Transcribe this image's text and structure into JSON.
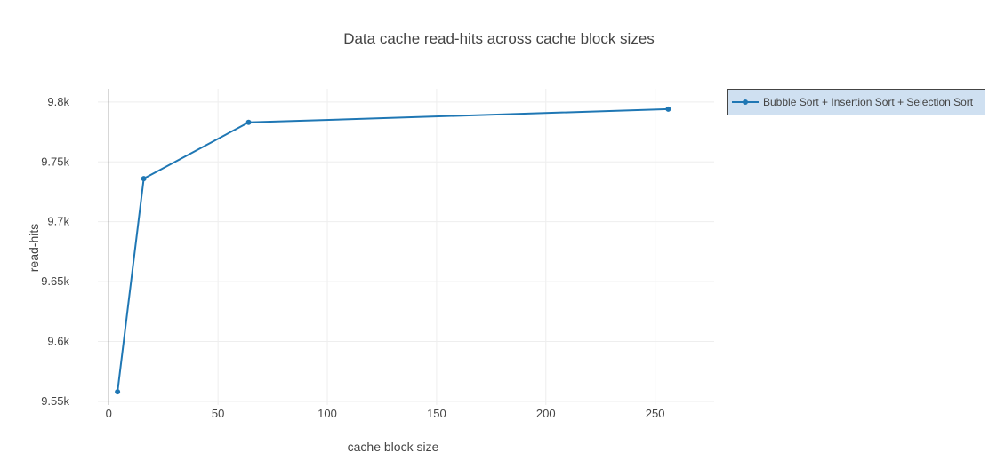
{
  "chart_data": {
    "type": "line",
    "title": "Data cache read-hits across cache block sizes",
    "xlabel": "cache block size",
    "ylabel": "read-hits",
    "xlim": [
      -5,
      277
    ],
    "ylim": [
      9547,
      9811
    ],
    "x_ticks": [
      0,
      50,
      100,
      150,
      200,
      250
    ],
    "x_tick_labels": [
      "0",
      "50",
      "100",
      "150",
      "200",
      "250"
    ],
    "y_ticks": [
      9550,
      9600,
      9650,
      9700,
      9750,
      9800
    ],
    "y_tick_labels": [
      "9.55k",
      "9.6k",
      "9.65k",
      "9.7k",
      "9.75k",
      "9.8k"
    ],
    "grid": true,
    "legend_position": "top-right",
    "series": [
      {
        "name": "Bubble Sort + Insertion Sort + Selection Sort",
        "x": [
          4,
          16,
          64,
          256
        ],
        "y": [
          9558,
          9736,
          9783,
          9794
        ],
        "color": "#1f77b4"
      }
    ]
  },
  "colors": {
    "series_line": "#1f77b4",
    "legend_background": "#cfe0f1",
    "legend_border": "#444444",
    "grid": "#eeeeee",
    "zero_line": "#444444"
  }
}
